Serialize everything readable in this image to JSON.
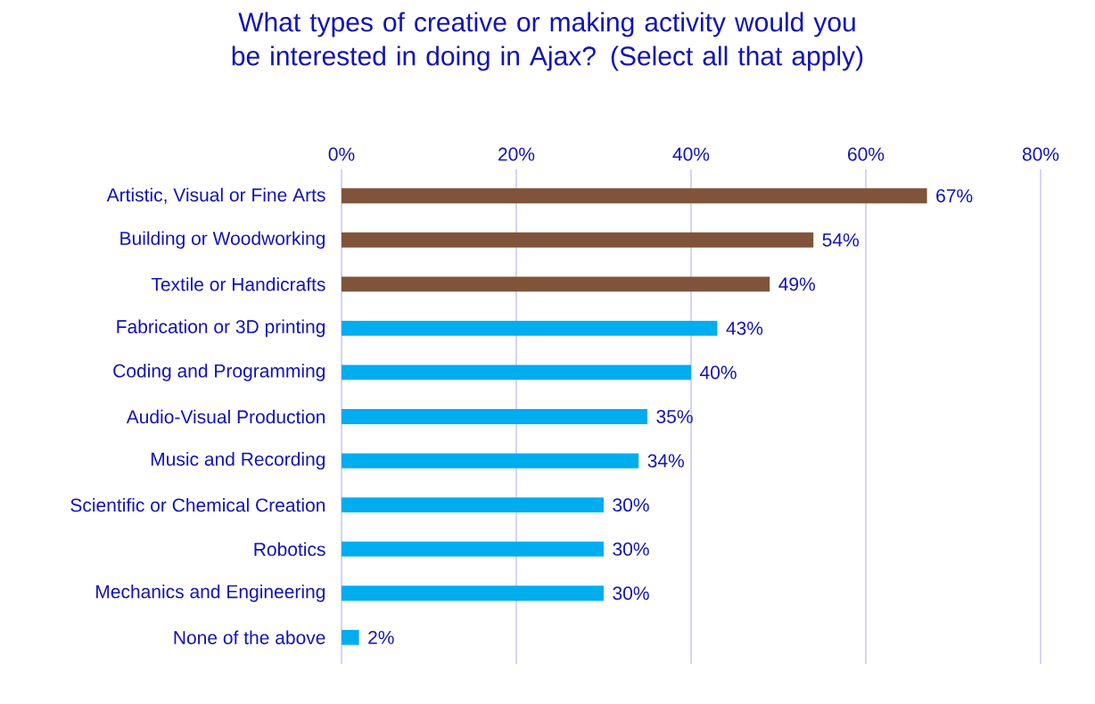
{
  "chart_data": {
    "type": "bar",
    "orientation": "horizontal",
    "title": "What types of creative or making activity would you be interested in doing in Ajax? (Select all that apply)",
    "categories": [
      "Artistic, Visual or Fine Arts",
      "Building or Woodworking",
      "Textile or Handicrafts",
      "Fabrication or 3D printing",
      "Coding and Programming",
      "Audio-Visual Production",
      "Music and Recording",
      "Scientific or Chemical Creation",
      "Robotics",
      "Mechanics and Engineering",
      "None of the above"
    ],
    "values": [
      67,
      54,
      49,
      43,
      40,
      35,
      34,
      30,
      30,
      30,
      2
    ],
    "value_labels": [
      "67%",
      "54%",
      "49%",
      "43%",
      "40%",
      "35%",
      "34%",
      "30%",
      "30%",
      "30%",
      "2%"
    ],
    "colors": [
      "#7f543a",
      "#7f543a",
      "#7f543a",
      "#00adef",
      "#00adef",
      "#00adef",
      "#00adef",
      "#00adef",
      "#00adef",
      "#00adef",
      "#00adef"
    ],
    "xlim": [
      0,
      80
    ],
    "xticks": [
      {
        "value": 0,
        "label": "0%"
      },
      {
        "value": 20,
        "label": "20%"
      },
      {
        "value": 40,
        "label": "40%"
      },
      {
        "value": 60,
        "label": "60%"
      },
      {
        "value": 80,
        "label": "80%"
      }
    ],
    "grid": "x"
  }
}
